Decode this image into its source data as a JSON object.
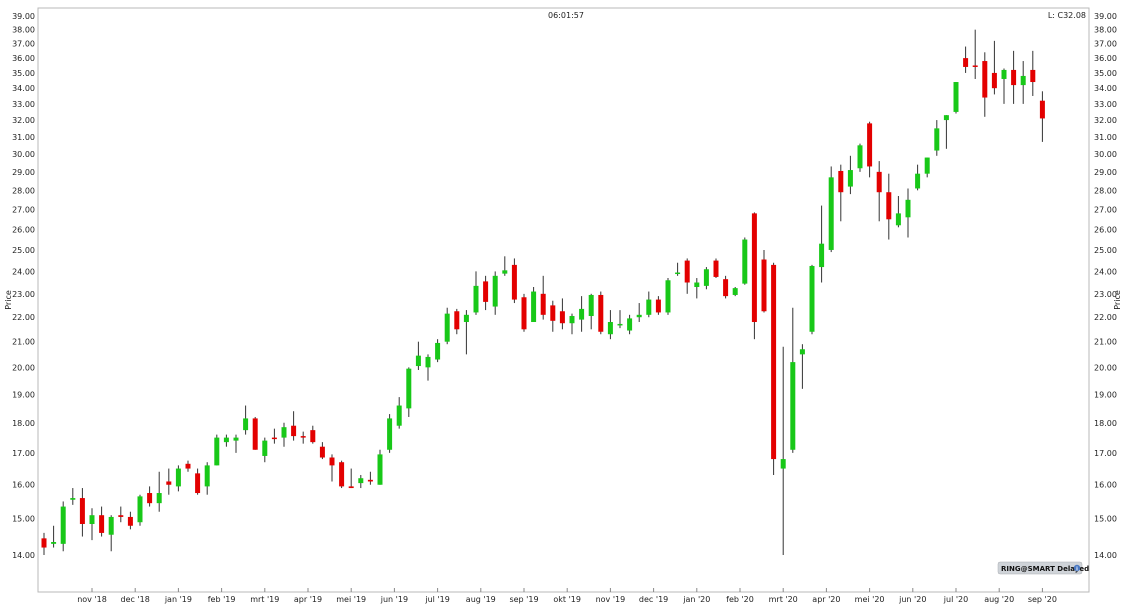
{
  "header": {
    "time": "06:01:57",
    "last": "L: C32.08"
  },
  "badge": {
    "label": "RING@SMART Delayed",
    "icon": "info-icon"
  },
  "colors": {
    "up": "#18c818",
    "down": "#e30000",
    "wick": "#333333",
    "plot_border": "#b9b9b9",
    "badge_bg": "#cfd3d8"
  },
  "chart_data": {
    "type": "candlestick",
    "ylabel": "Price",
    "ylim": [
      13.3,
      39.0
    ],
    "y_scale": "log",
    "y_ticks": [
      "14.00",
      "15.00",
      "16.00",
      "17.00",
      "18.00",
      "19.00",
      "20.00",
      "21.00",
      "22.00",
      "23.00",
      "24.00",
      "25.00",
      "26.00",
      "27.00",
      "28.00",
      "29.00",
      "30.00",
      "31.00",
      "32.00",
      "33.00",
      "34.00",
      "35.00",
      "36.00",
      "37.00",
      "38.00",
      "39.00"
    ],
    "x_ticks": [
      "nov '18",
      "dec '18",
      "jan '19",
      "feb '19",
      "mrt '19",
      "apr '19",
      "mei '19",
      "jun '19",
      "jul '19",
      "aug '19",
      "sep '19",
      "okt '19",
      "nov '19",
      "dec '19",
      "jan '20",
      "feb '20",
      "mrt '20",
      "apr '20",
      "mei '20",
      "jun '20",
      "jul '20",
      "aug '20",
      "sep '20"
    ],
    "x_tick_weeks": [
      5,
      9.5,
      14,
      18.5,
      23,
      27.5,
      32,
      36.5,
      41,
      45.5,
      50,
      54.5,
      59,
      63.5,
      68,
      72.5,
      77,
      81.5,
      86,
      90.5,
      95,
      99.5,
      104
    ],
    "candles": [
      {
        "o": 14.45,
        "h": 14.6,
        "l": 14.0,
        "c": 14.2
      },
      {
        "o": 14.3,
        "h": 14.8,
        "l": 14.2,
        "c": 14.35
      },
      {
        "o": 14.3,
        "h": 15.5,
        "l": 14.1,
        "c": 15.35
      },
      {
        "o": 15.55,
        "h": 15.9,
        "l": 15.4,
        "c": 15.6
      },
      {
        "o": 15.6,
        "h": 15.9,
        "l": 14.5,
        "c": 14.85
      },
      {
        "o": 14.85,
        "h": 15.3,
        "l": 14.4,
        "c": 15.1
      },
      {
        "o": 15.1,
        "h": 15.35,
        "l": 14.5,
        "c": 14.6
      },
      {
        "o": 14.55,
        "h": 15.1,
        "l": 14.1,
        "c": 15.05
      },
      {
        "o": 15.1,
        "h": 15.35,
        "l": 14.9,
        "c": 15.05
      },
      {
        "o": 15.05,
        "h": 15.2,
        "l": 14.7,
        "c": 14.8
      },
      {
        "o": 14.9,
        "h": 15.7,
        "l": 14.8,
        "c": 15.65
      },
      {
        "o": 15.75,
        "h": 15.95,
        "l": 15.35,
        "c": 15.45
      },
      {
        "o": 15.45,
        "h": 16.4,
        "l": 15.2,
        "c": 15.75
      },
      {
        "o": 16.1,
        "h": 16.5,
        "l": 15.7,
        "c": 16.0
      },
      {
        "o": 15.95,
        "h": 16.6,
        "l": 15.8,
        "c": 16.5
      },
      {
        "o": 16.65,
        "h": 16.75,
        "l": 16.4,
        "c": 16.5
      },
      {
        "o": 16.35,
        "h": 16.5,
        "l": 15.7,
        "c": 15.75
      },
      {
        "o": 15.95,
        "h": 16.7,
        "l": 15.7,
        "c": 16.6
      },
      {
        "o": 16.6,
        "h": 17.6,
        "l": 16.6,
        "c": 17.5
      },
      {
        "o": 17.35,
        "h": 17.6,
        "l": 17.2,
        "c": 17.5
      },
      {
        "o": 17.4,
        "h": 17.6,
        "l": 17.0,
        "c": 17.5
      },
      {
        "o": 17.75,
        "h": 18.6,
        "l": 17.6,
        "c": 18.15
      },
      {
        "o": 18.15,
        "h": 18.2,
        "l": 17.1,
        "c": 17.1
      },
      {
        "o": 16.9,
        "h": 17.5,
        "l": 16.7,
        "c": 17.4
      },
      {
        "o": 17.5,
        "h": 17.8,
        "l": 17.3,
        "c": 17.45
      },
      {
        "o": 17.5,
        "h": 18.0,
        "l": 17.2,
        "c": 17.85
      },
      {
        "o": 17.9,
        "h": 18.4,
        "l": 17.4,
        "c": 17.55
      },
      {
        "o": 17.55,
        "h": 17.7,
        "l": 17.3,
        "c": 17.5
      },
      {
        "o": 17.75,
        "h": 17.9,
        "l": 17.3,
        "c": 17.35
      },
      {
        "o": 17.2,
        "h": 17.35,
        "l": 16.8,
        "c": 16.85
      },
      {
        "o": 16.85,
        "h": 16.95,
        "l": 16.1,
        "c": 16.6
      },
      {
        "o": 16.7,
        "h": 16.75,
        "l": 15.9,
        "c": 15.95
      },
      {
        "o": 15.95,
        "h": 16.5,
        "l": 15.9,
        "c": 15.9
      },
      {
        "o": 16.05,
        "h": 16.3,
        "l": 15.9,
        "c": 16.2
      },
      {
        "o": 16.15,
        "h": 16.4,
        "l": 16.0,
        "c": 16.1
      },
      {
        "o": 16.0,
        "h": 17.1,
        "l": 16.0,
        "c": 16.95
      },
      {
        "o": 17.1,
        "h": 18.3,
        "l": 17.0,
        "c": 18.15
      },
      {
        "o": 17.9,
        "h": 18.9,
        "l": 17.8,
        "c": 18.6
      },
      {
        "o": 18.5,
        "h": 20.0,
        "l": 18.2,
        "c": 19.95
      },
      {
        "o": 20.05,
        "h": 21.0,
        "l": 19.9,
        "c": 20.45
      },
      {
        "o": 20.0,
        "h": 20.5,
        "l": 19.5,
        "c": 20.4
      },
      {
        "o": 20.3,
        "h": 21.1,
        "l": 20.2,
        "c": 20.95
      },
      {
        "o": 21.0,
        "h": 22.4,
        "l": 20.9,
        "c": 22.15
      },
      {
        "o": 22.25,
        "h": 22.35,
        "l": 21.3,
        "c": 21.5
      },
      {
        "o": 21.8,
        "h": 22.3,
        "l": 20.5,
        "c": 22.1
      },
      {
        "o": 22.2,
        "h": 24.0,
        "l": 22.1,
        "c": 23.35
      },
      {
        "o": 23.55,
        "h": 23.8,
        "l": 22.3,
        "c": 22.65
      },
      {
        "o": 22.45,
        "h": 24.0,
        "l": 22.1,
        "c": 23.8
      },
      {
        "o": 23.9,
        "h": 24.7,
        "l": 23.8,
        "c": 24.05
      },
      {
        "o": 24.3,
        "h": 24.6,
        "l": 22.6,
        "c": 22.75
      },
      {
        "o": 22.85,
        "h": 23.0,
        "l": 21.4,
        "c": 21.5
      },
      {
        "o": 21.8,
        "h": 23.3,
        "l": 21.8,
        "c": 23.1
      },
      {
        "o": 23.0,
        "h": 23.8,
        "l": 21.9,
        "c": 22.1
      },
      {
        "o": 22.5,
        "h": 22.7,
        "l": 21.4,
        "c": 21.85
      },
      {
        "o": 22.25,
        "h": 22.8,
        "l": 21.5,
        "c": 21.75
      },
      {
        "o": 21.75,
        "h": 22.15,
        "l": 21.3,
        "c": 22.05
      },
      {
        "o": 21.9,
        "h": 22.9,
        "l": 21.4,
        "c": 22.35
      },
      {
        "o": 22.05,
        "h": 23.0,
        "l": 21.5,
        "c": 22.95
      },
      {
        "o": 22.95,
        "h": 23.1,
        "l": 21.3,
        "c": 21.4
      },
      {
        "o": 21.3,
        "h": 22.3,
        "l": 21.1,
        "c": 21.8
      },
      {
        "o": 21.7,
        "h": 22.3,
        "l": 21.55,
        "c": 21.72
      },
      {
        "o": 21.45,
        "h": 22.1,
        "l": 21.3,
        "c": 21.95
      },
      {
        "o": 22.0,
        "h": 22.6,
        "l": 21.8,
        "c": 22.1
      },
      {
        "o": 22.1,
        "h": 23.1,
        "l": 22.0,
        "c": 22.75
      },
      {
        "o": 22.75,
        "h": 22.9,
        "l": 22.1,
        "c": 22.2
      },
      {
        "o": 22.2,
        "h": 23.7,
        "l": 22.1,
        "c": 23.6
      },
      {
        "o": 23.9,
        "h": 24.4,
        "l": 23.8,
        "c": 23.95
      },
      {
        "o": 24.5,
        "h": 24.6,
        "l": 23.0,
        "c": 23.5
      },
      {
        "o": 23.3,
        "h": 23.7,
        "l": 22.8,
        "c": 23.5
      },
      {
        "o": 23.35,
        "h": 24.2,
        "l": 23.2,
        "c": 24.1
      },
      {
        "o": 24.5,
        "h": 24.6,
        "l": 23.7,
        "c": 23.75
      },
      {
        "o": 23.65,
        "h": 23.8,
        "l": 22.8,
        "c": 22.9
      },
      {
        "o": 22.95,
        "h": 23.3,
        "l": 22.9,
        "c": 23.25
      },
      {
        "o": 23.45,
        "h": 25.6,
        "l": 23.4,
        "c": 25.5
      },
      {
        "o": 26.8,
        "h": 26.85,
        "l": 21.1,
        "c": 21.8
      },
      {
        "o": 24.55,
        "h": 25.0,
        "l": 22.2,
        "c": 22.25
      },
      {
        "o": 24.3,
        "h": 24.4,
        "l": 16.3,
        "c": 16.8
      },
      {
        "o": 16.5,
        "h": 20.8,
        "l": 14.0,
        "c": 16.8
      },
      {
        "o": 17.1,
        "h": 22.4,
        "l": 17.0,
        "c": 20.2
      },
      {
        "o": 20.5,
        "h": 20.9,
        "l": 19.2,
        "c": 20.7
      },
      {
        "o": 21.4,
        "h": 24.3,
        "l": 21.3,
        "c": 24.25
      },
      {
        "o": 24.2,
        "h": 27.2,
        "l": 23.5,
        "c": 25.3
      },
      {
        "o": 25.0,
        "h": 29.3,
        "l": 24.9,
        "c": 28.7
      },
      {
        "o": 29.05,
        "h": 29.4,
        "l": 26.4,
        "c": 27.9
      },
      {
        "o": 28.2,
        "h": 29.9,
        "l": 27.8,
        "c": 29.1
      },
      {
        "o": 29.2,
        "h": 30.6,
        "l": 29.0,
        "c": 30.5
      },
      {
        "o": 31.8,
        "h": 31.9,
        "l": 28.7,
        "c": 29.3
      },
      {
        "o": 29.0,
        "h": 29.6,
        "l": 26.4,
        "c": 27.9
      },
      {
        "o": 27.9,
        "h": 28.9,
        "l": 25.5,
        "c": 26.5
      },
      {
        "o": 26.2,
        "h": 27.7,
        "l": 26.1,
        "c": 26.8
      },
      {
        "o": 26.6,
        "h": 28.1,
        "l": 25.6,
        "c": 27.5
      },
      {
        "o": 28.1,
        "h": 29.4,
        "l": 28.0,
        "c": 28.9
      },
      {
        "o": 28.9,
        "h": 29.8,
        "l": 28.7,
        "c": 29.8
      },
      {
        "o": 30.2,
        "h": 32.0,
        "l": 29.9,
        "c": 31.5
      },
      {
        "o": 32.0,
        "h": 32.3,
        "l": 30.3,
        "c": 32.3
      },
      {
        "o": 32.5,
        "h": 34.4,
        "l": 32.4,
        "c": 34.4
      },
      {
        "o": 36.0,
        "h": 36.8,
        "l": 35.0,
        "c": 35.4
      },
      {
        "o": 35.5,
        "h": 38.0,
        "l": 34.6,
        "c": 35.4
      },
      {
        "o": 35.8,
        "h": 36.4,
        "l": 32.2,
        "c": 33.4
      },
      {
        "o": 35.0,
        "h": 37.2,
        "l": 33.6,
        "c": 34.0
      },
      {
        "o": 34.6,
        "h": 35.3,
        "l": 33.0,
        "c": 35.2
      },
      {
        "o": 35.2,
        "h": 36.5,
        "l": 33.0,
        "c": 34.2
      },
      {
        "o": 34.2,
        "h": 35.8,
        "l": 33.0,
        "c": 34.8
      },
      {
        "o": 35.2,
        "h": 36.5,
        "l": 33.5,
        "c": 34.4
      },
      {
        "o": 33.2,
        "h": 33.8,
        "l": 30.7,
        "c": 32.1
      }
    ]
  }
}
